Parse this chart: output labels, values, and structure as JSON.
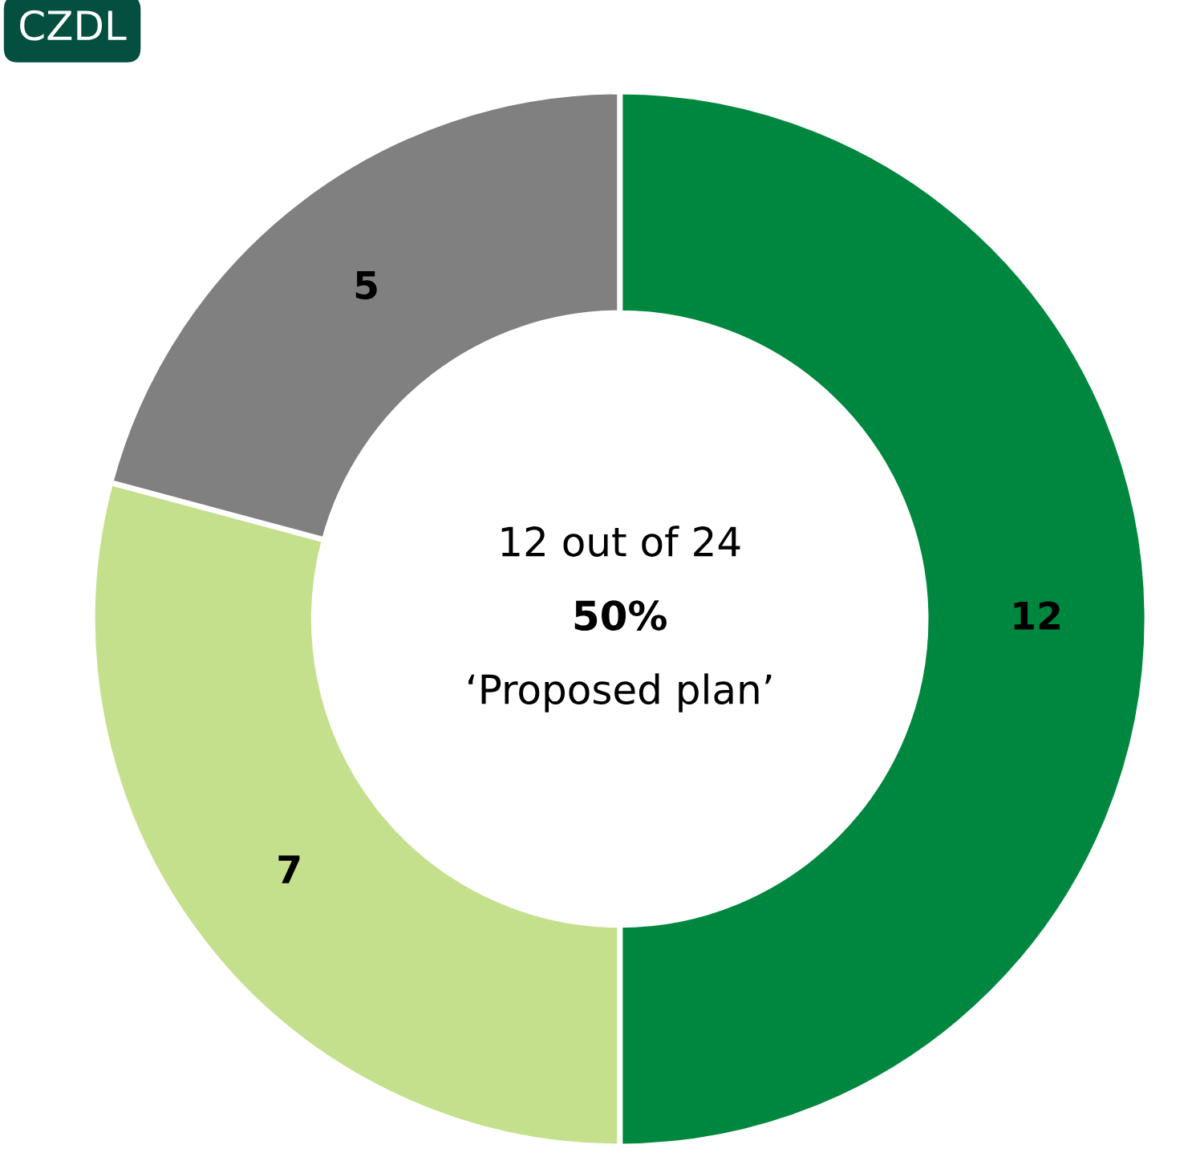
{
  "chart_data": {
    "type": "donut",
    "title": "CZDL",
    "categories": [
      null,
      null,
      null
    ],
    "values": [
      12,
      7,
      5
    ],
    "colors": [
      "#00873f",
      "#c5e08c",
      "#808080"
    ],
    "data_labels": true,
    "annotations": [
      "12 out of 24",
      "50%",
      "‘Proposed plan’"
    ]
  }
}
